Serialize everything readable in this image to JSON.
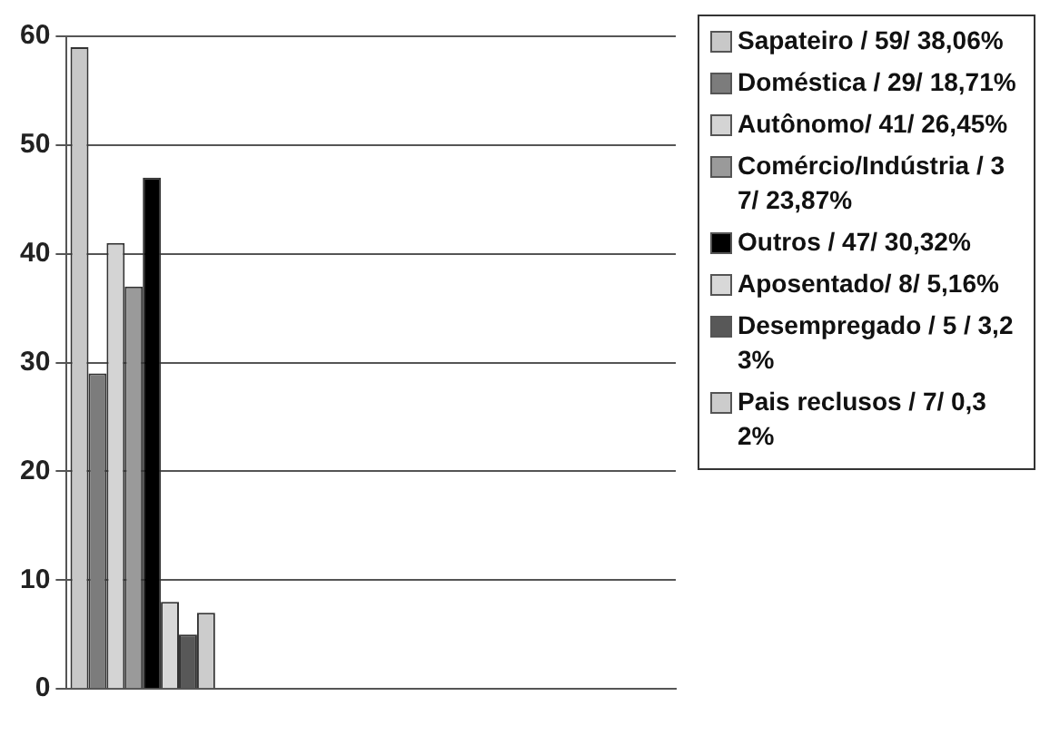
{
  "chart_data": {
    "type": "bar",
    "categories": [
      null,
      null,
      null,
      null
    ],
    "series": [
      {
        "name": "Sapateiro / 59/ 38,06%",
        "color": "#c8c8c8",
        "values": [
          59,
          null,
          null,
          null
        ]
      },
      {
        "name": "Doméstica / 29/ 18,71%",
        "color": "#7c7c7c",
        "values": [
          29,
          null,
          null,
          null
        ]
      },
      {
        "name": "Autônomo/ 41/ 26,45%",
        "color": "#d4d4d4",
        "values": [
          41,
          null,
          null,
          null
        ]
      },
      {
        "name": "Comércio/Indústria / 37/ 23,87%",
        "color": "#9a9a9a",
        "values": [
          37,
          null,
          null,
          null
        ]
      },
      {
        "name": "Outros / 47/ 30,32%",
        "color": "#000000",
        "values": [
          47,
          null,
          null,
          null
        ]
      },
      {
        "name": "Aposentado/ 8/ 5,16%",
        "color": "#d8d8d8",
        "values": [
          8,
          null,
          null,
          null
        ]
      },
      {
        "name": "Desempregado / 5 / 3,23%",
        "color": "#585858",
        "values": [
          5,
          null,
          null,
          null
        ]
      },
      {
        "name": "Pais reclusos / 7/ 0,32%",
        "color": "#cccccc",
        "values": [
          7,
          null,
          null,
          null
        ]
      }
    ],
    "ylim": [
      0,
      60
    ],
    "yticks": [
      0,
      10,
      20,
      30,
      40,
      50,
      60
    ],
    "grid": "y",
    "legend": "right"
  }
}
